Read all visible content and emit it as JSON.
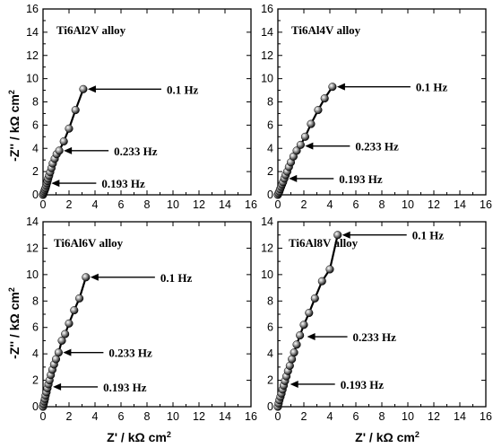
{
  "figure": {
    "ylabel": "-Z'' / kΩ cm",
    "ylabel_sup": "2",
    "xlabel": "Z' / kΩ cm",
    "xlabel_sup": "2"
  },
  "chart_data": [
    {
      "type": "scatter",
      "title": "Ti6Al2V alloy",
      "xlim": [
        0,
        16
      ],
      "ylim": [
        0,
        16
      ],
      "xticks": [
        0,
        2,
        4,
        6,
        8,
        10,
        12,
        14,
        16
      ],
      "yticks": [
        0,
        2,
        4,
        6,
        8,
        10,
        12,
        14,
        16
      ],
      "series": [
        {
          "x": [
            0.0,
            0.05,
            0.1,
            0.15,
            0.2,
            0.25,
            0.3,
            0.35,
            0.4,
            0.47,
            0.55,
            0.65,
            0.75,
            0.9,
            1.05,
            1.25,
            1.6,
            2.0,
            2.5,
            3.1
          ],
          "y": [
            0.0,
            0.15,
            0.3,
            0.45,
            0.6,
            0.8,
            1.0,
            1.2,
            1.4,
            1.65,
            1.95,
            2.3,
            2.7,
            3.1,
            3.5,
            3.8,
            4.6,
            5.7,
            7.3,
            9.1
          ]
        }
      ],
      "annotations": [
        {
          "text": "0.1 Hz",
          "x": 3.1,
          "y": 9.1
        },
        {
          "text": "0.233 Hz",
          "x": 1.25,
          "y": 3.8
        },
        {
          "text": "0.193 Hz",
          "x": 0.3,
          "y": 1.0
        }
      ]
    },
    {
      "type": "scatter",
      "title": "Ti6Al4V alloy",
      "xlim": [
        0,
        16
      ],
      "ylim": [
        0,
        16
      ],
      "xticks": [
        0,
        2,
        4,
        6,
        8,
        10,
        12,
        14,
        16
      ],
      "yticks": [
        0,
        2,
        4,
        6,
        8,
        10,
        12,
        14,
        16
      ],
      "series": [
        {
          "x": [
            0.0,
            0.06,
            0.12,
            0.18,
            0.25,
            0.32,
            0.4,
            0.5,
            0.6,
            0.72,
            0.85,
            1.0,
            1.2,
            1.45,
            1.75,
            2.1,
            2.55,
            3.1,
            3.6,
            4.2
          ],
          "y": [
            0.0,
            0.15,
            0.3,
            0.5,
            0.7,
            0.9,
            1.1,
            1.4,
            1.7,
            2.0,
            2.4,
            2.8,
            3.3,
            3.8,
            4.3,
            5.0,
            6.1,
            7.3,
            8.3,
            9.3
          ]
        }
      ],
      "annotations": [
        {
          "text": "0.1 Hz",
          "x": 4.2,
          "y": 9.3
        },
        {
          "text": "0.233 Hz",
          "x": 1.75,
          "y": 4.2
        },
        {
          "text": "0.193 Hz",
          "x": 0.5,
          "y": 1.4
        }
      ]
    },
    {
      "type": "scatter",
      "title": "Ti6Al6V alloy",
      "xlim": [
        0,
        16
      ],
      "ylim": [
        0,
        14
      ],
      "xticks": [
        0,
        2,
        4,
        6,
        8,
        10,
        12,
        14,
        16
      ],
      "yticks": [
        0,
        2,
        4,
        6,
        8,
        10,
        12,
        14
      ],
      "series": [
        {
          "x": [
            0.0,
            0.05,
            0.1,
            0.15,
            0.2,
            0.27,
            0.34,
            0.42,
            0.5,
            0.6,
            0.72,
            0.85,
            1.0,
            1.2,
            1.45,
            1.7,
            2.0,
            2.4,
            2.8,
            3.3
          ],
          "y": [
            0.0,
            0.2,
            0.4,
            0.6,
            0.85,
            1.1,
            1.4,
            1.7,
            2.0,
            2.4,
            2.8,
            3.2,
            3.6,
            4.1,
            5.0,
            5.5,
            6.3,
            7.3,
            8.2,
            9.8
          ]
        }
      ],
      "annotations": [
        {
          "text": "0.1 Hz",
          "x": 3.3,
          "y": 9.8
        },
        {
          "text": "0.233 Hz",
          "x": 1.2,
          "y": 4.1
        },
        {
          "text": "0.193 Hz",
          "x": 0.42,
          "y": 1.5
        }
      ]
    },
    {
      "type": "scatter",
      "title": "Ti6Al8V alloy",
      "xlim": [
        0,
        16
      ],
      "ylim": [
        0,
        14
      ],
      "xticks": [
        0,
        2,
        4,
        6,
        8,
        10,
        12,
        14,
        16
      ],
      "yticks": [
        0,
        2,
        4,
        6,
        8,
        10,
        12,
        14
      ],
      "series": [
        {
          "x": [
            0.0,
            0.06,
            0.12,
            0.2,
            0.28,
            0.36,
            0.45,
            0.55,
            0.66,
            0.78,
            0.92,
            1.08,
            1.25,
            1.45,
            1.7,
            2.0,
            2.4,
            2.85,
            3.4,
            4.0,
            4.6
          ],
          "y": [
            0.0,
            0.25,
            0.5,
            0.75,
            1.0,
            1.3,
            1.6,
            1.95,
            2.3,
            2.7,
            3.1,
            3.6,
            4.1,
            4.7,
            5.4,
            6.2,
            7.1,
            8.2,
            9.5,
            10.4,
            13.0
          ]
        }
      ],
      "annotations": [
        {
          "text": "0.1 Hz",
          "x": 4.6,
          "y": 13.0
        },
        {
          "text": "0.233 Hz",
          "x": 1.9,
          "y": 5.3
        },
        {
          "text": "0.193 Hz",
          "x": 0.6,
          "y": 1.7
        }
      ]
    }
  ]
}
